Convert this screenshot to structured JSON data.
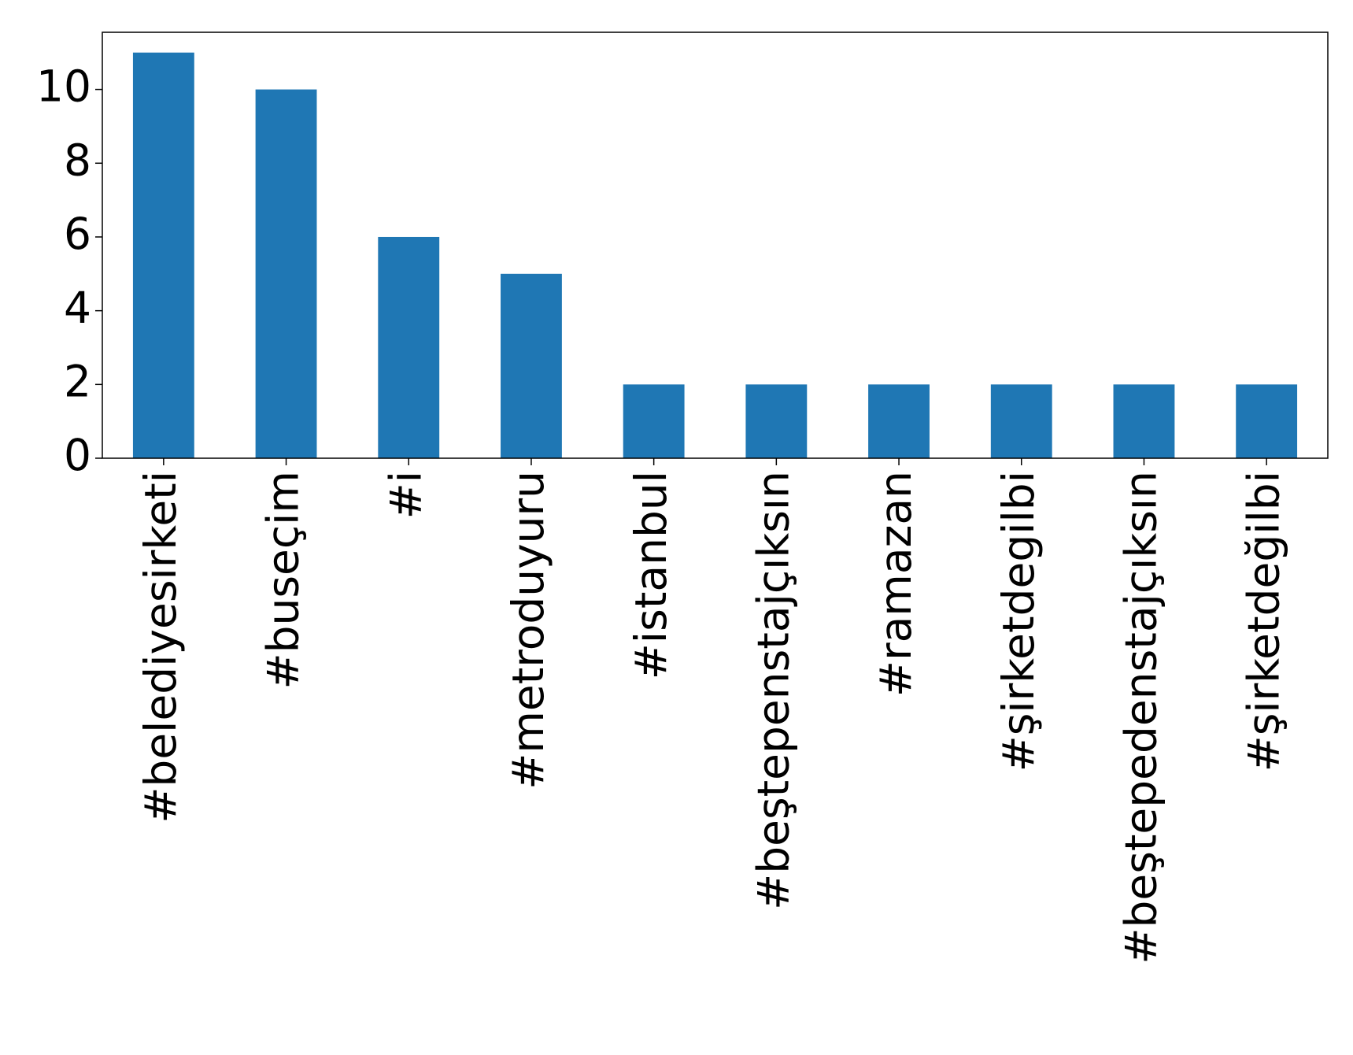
{
  "chart_data": {
    "type": "bar",
    "categories": [
      "#belediyesirketi",
      "#buseçim",
      "#i",
      "#metroduyuru",
      "#istanbul",
      "#beştepenstajçıksın",
      "#ramazan",
      "#şirketdegilbi",
      "#beştepedenstajçıksın",
      "#şirketdeğilbi"
    ],
    "values": [
      11,
      10,
      6,
      5,
      2,
      2,
      2,
      2,
      2,
      2
    ],
    "color": "#1f77b4",
    "ylim": [
      0,
      11.55
    ],
    "yticks": [
      0,
      2,
      4,
      6,
      8,
      10
    ],
    "grid": false
  }
}
